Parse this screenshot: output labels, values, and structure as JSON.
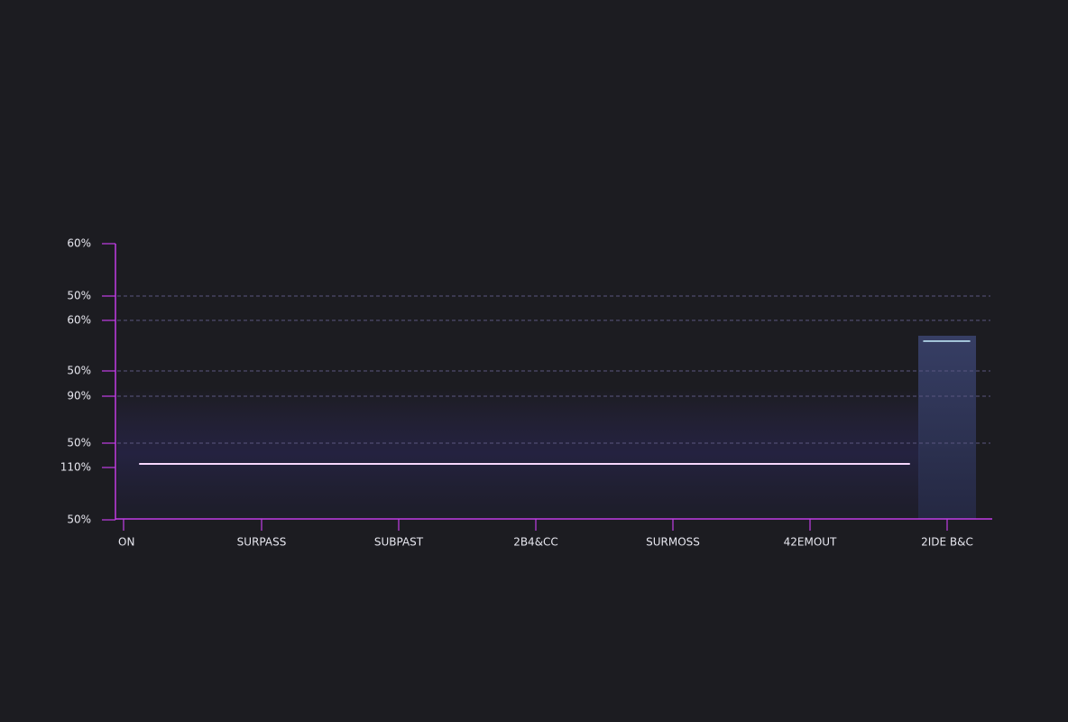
{
  "y_labels": [
    "60%",
    "50%",
    "60%",
    "50%",
    "90%",
    "50%",
    "110%",
    "50%"
  ],
  "x_labels": [
    "ON",
    "SURPASS",
    "SUBPAST",
    "2B4&CC",
    "SURMOSS",
    "42EMOUT",
    "2IDE B&C"
  ]
}
